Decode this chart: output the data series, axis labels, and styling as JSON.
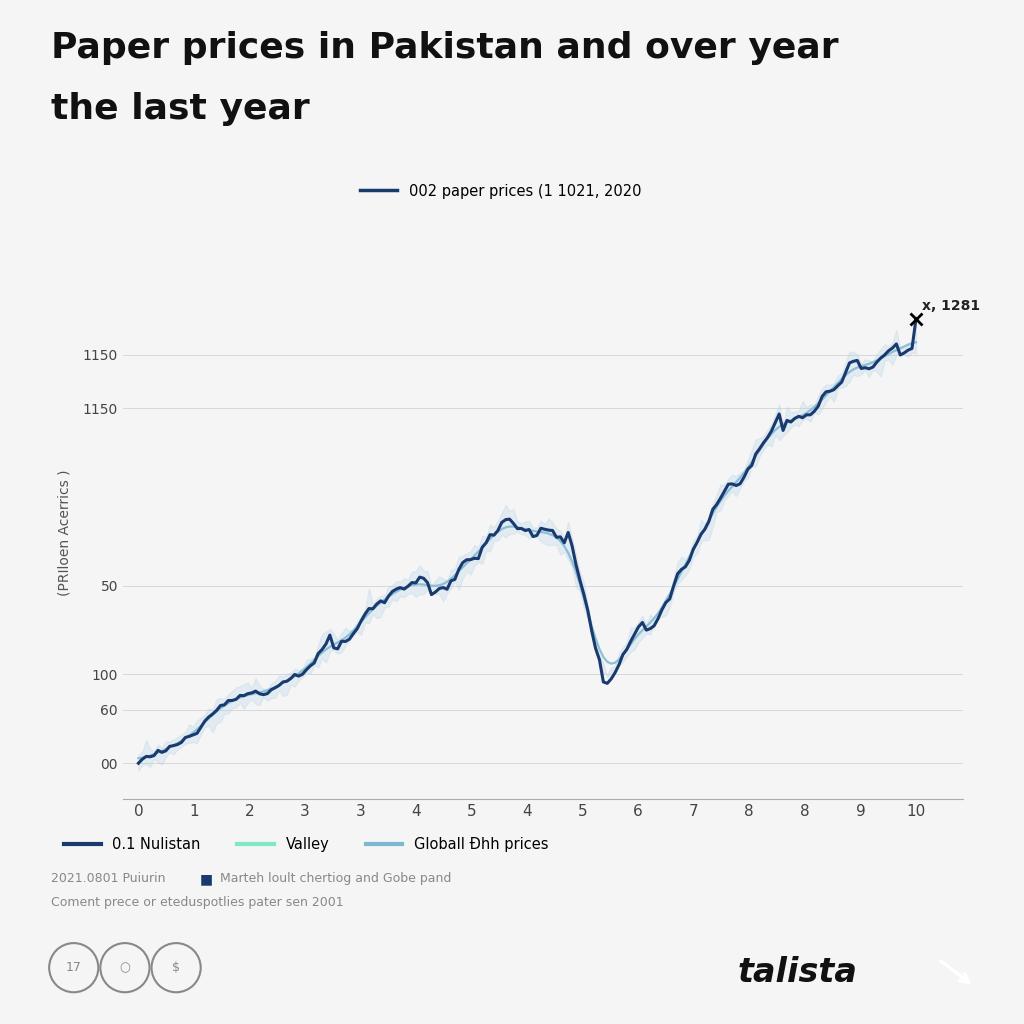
{
  "title_line1": "Paper prices in Pakistan and over year",
  "title_line2": "the last year",
  "title_fontsize": 26,
  "title_fontweight": "bold",
  "background_color": "#f5f5f5",
  "plot_bg_color": "#f5f5f5",
  "ylabel": "(PRIloen Acerrics )",
  "ylabel_fontsize": 10,
  "annotation_text": "x, 1281",
  "legend_title": "002 paper prices (1 1021, 2020",
  "legend_items": [
    "0.1 Nulistan",
    "Valley",
    "Globall Ðhh prices"
  ],
  "legend_colors": [
    "#1a3a6e",
    "#7ee8c8",
    "#7ab8d4"
  ],
  "source_text1": "2021.0801 Puiurin",
  "source_square": "■",
  "source_text1b": "Marteh loult chertiog and Gobe pand",
  "source_text2": "Coment prece or eteduspotlies pater sen 2001",
  "xtick_labels": [
    "0",
    "1",
    "2",
    "3",
    "3",
    "4",
    "5",
    "4",
    "5",
    "6",
    "7",
    "8",
    "8",
    "9",
    "10"
  ],
  "ytick_labels": [
    "00",
    "60",
    "100",
    "50",
    "1150",
    "1150"
  ],
  "line_color": "#1a3a6e",
  "band_color": "#b8d4e8",
  "global_color": "#7ab8d4",
  "line_width": 2.2,
  "talista_color": "#111111"
}
